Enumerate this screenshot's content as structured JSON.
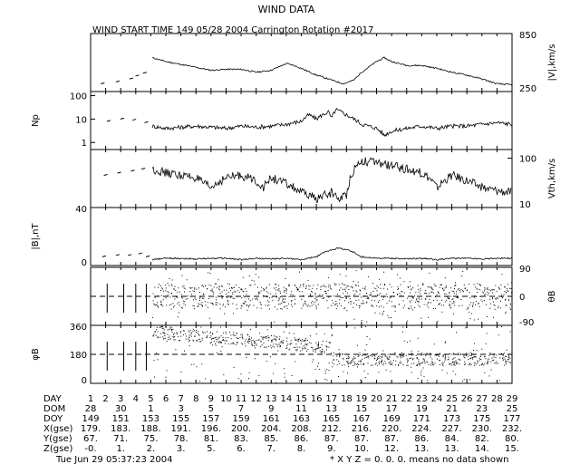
{
  "title": "WIND DATA",
  "subtitle": "WIND START TIME 149 05/28 2004 Carrington Rotation #2017",
  "footer_timestamp": "Tue Jun 29 05:37:23 2004",
  "footer_note": "* X Y Z = 0. 0. 0. means no data shown",
  "chart_data": [
    {
      "type": "line",
      "ylabel": "|V|,km/s",
      "label_side": "right",
      "yticks": [
        "850",
        "250"
      ],
      "ylim": [
        250,
        850
      ],
      "series": [
        {
          "x": [
            5.1,
            6,
            7,
            8,
            9,
            10,
            11,
            12,
            13,
            14,
            14.5,
            15,
            16,
            17,
            17.8,
            18.5,
            19,
            20,
            20.5,
            21,
            22,
            23,
            24,
            25,
            26,
            27,
            28,
            29
          ],
          "values": [
            600,
            560,
            530,
            500,
            470,
            480,
            480,
            450,
            470,
            540,
            520,
            490,
            420,
            370,
            330,
            370,
            450,
            560,
            600,
            560,
            520,
            520,
            490,
            450,
            420,
            380,
            330,
            320
          ]
        }
      ],
      "early_points": {
        "x": [
          1.8,
          2.8,
          3.7,
          4.1,
          4.6
        ],
        "values": [
          330,
          350,
          380,
          410,
          440
        ]
      }
    },
    {
      "type": "line",
      "ylabel": "Np",
      "label_side": "left",
      "yscale": "log",
      "yticks": [
        "100",
        "10",
        "1"
      ],
      "ylim": [
        0.5,
        150
      ],
      "series": [
        {
          "x": [
            5.1,
            6,
            7,
            8,
            9,
            10,
            11,
            12,
            13,
            14,
            15,
            15.5,
            16,
            16.8,
            17,
            17.3,
            18,
            18.5,
            19,
            20,
            20.5,
            21,
            22,
            23,
            24,
            25,
            26,
            27,
            28,
            29
          ],
          "values": [
            5,
            4,
            4.5,
            5,
            4.5,
            4,
            5,
            4.5,
            5,
            6,
            8,
            15,
            10,
            20,
            10,
            25,
            15,
            10,
            6,
            4,
            2,
            3,
            4,
            5,
            4,
            5,
            5,
            6,
            7,
            6
          ]
        }
      ],
      "early_points": {
        "x": [
          2.2,
          3.1,
          3.9,
          4.7
        ],
        "values": [
          8,
          10,
          9,
          7
        ]
      }
    },
    {
      "type": "line",
      "ylabel": "Vth,km/s",
      "label_side": "right",
      "yscale": "log",
      "yticks": [
        "100",
        "10"
      ],
      "ylim": [
        10,
        150
      ],
      "series": [
        {
          "x": [
            5.1,
            6,
            7,
            8,
            8.5,
            9,
            10,
            11,
            12,
            12.5,
            13,
            14,
            15,
            16,
            17,
            17.5,
            18,
            18.5,
            19,
            20,
            21,
            22,
            23,
            23.5,
            24,
            25,
            26,
            27,
            28,
            29
          ],
          "values": [
            60,
            50,
            45,
            40,
            30,
            25,
            40,
            45,
            35,
            25,
            40,
            30,
            20,
            15,
            20,
            15,
            18,
            60,
            90,
            80,
            70,
            60,
            50,
            40,
            25,
            45,
            35,
            25,
            22,
            20
          ]
        }
      ],
      "early_points": {
        "x": [
          2,
          2.9,
          3.8,
          4.5
        ],
        "values": [
          45,
          50,
          55,
          60
        ]
      }
    },
    {
      "type": "line",
      "ylabel": "|B|,nT",
      "label_side": "left",
      "yticks": [
        "40",
        "0"
      ],
      "ylim": [
        0,
        40
      ],
      "series": [
        {
          "x": [
            5.1,
            6,
            7,
            8,
            9,
            10,
            11,
            12,
            13,
            14,
            15,
            16,
            16.5,
            17,
            17.5,
            18,
            18.5,
            19,
            20,
            21,
            22,
            23,
            24,
            25,
            26,
            27,
            28,
            29
          ],
          "values": [
            4,
            5,
            5,
            4.5,
            5,
            5,
            4,
            5,
            4.5,
            5,
            4,
            6,
            9,
            11,
            12,
            11,
            9,
            6,
            5,
            5,
            4.5,
            5,
            4,
            5,
            5,
            4.5,
            5,
            5
          ]
        }
      ],
      "early_points": {
        "x": [
          1.9,
          2.8,
          3.6,
          4.3,
          4.8
        ],
        "values": [
          6,
          7,
          7,
          8,
          6
        ]
      }
    },
    {
      "type": "scatter",
      "ylabel": "θB",
      "label_side": "right",
      "yticks": [
        "90",
        "0",
        "-90"
      ],
      "ylim": [
        -90,
        90
      ],
      "reference_line": 0,
      "x_range": [
        5.1,
        29
      ],
      "spread": 40
    },
    {
      "type": "scatter",
      "ylabel": "φB",
      "label_side": "left",
      "yticks": [
        "360",
        "180",
        "0"
      ],
      "ylim": [
        0,
        360
      ],
      "reference_line": 180,
      "x_range": [
        5.1,
        29
      ]
    }
  ],
  "time_axis": {
    "labels": [
      "DAY",
      "DOM",
      "DOY",
      "X(gse)",
      "Y(gse)",
      "Z(gse)"
    ],
    "day": [
      "1",
      "2",
      "3",
      "4",
      "5",
      "6",
      "7",
      "8",
      "9",
      "10",
      "11",
      "12",
      "13",
      "14",
      "15",
      "16",
      "17",
      "18",
      "19",
      "20",
      "21",
      "22",
      "23",
      "24",
      "25",
      "26",
      "27",
      "28",
      "29"
    ],
    "dom": [
      "28",
      "30",
      "1",
      "3",
      "5",
      "7",
      "9",
      "11",
      "13",
      "15",
      "17",
      "19",
      "21",
      "23",
      "25"
    ],
    "doy": [
      "149",
      "151",
      "153",
      "155",
      "157",
      "159",
      "161",
      "163",
      "165",
      "167",
      "169",
      "171",
      "173",
      "175",
      "177"
    ],
    "xgse": [
      "179.",
      "183.",
      "188.",
      "191.",
      "196.",
      "200.",
      "204.",
      "208.",
      "212.",
      "216.",
      "220.",
      "224.",
      "227.",
      "230.",
      "232."
    ],
    "ygse": [
      "67.",
      "71.",
      "75.",
      "78.",
      "81.",
      "83.",
      "85.",
      "86.",
      "87.",
      "87.",
      "87.",
      "86.",
      "84.",
      "82.",
      "80."
    ],
    "zgse": [
      "-0.",
      "1.",
      "2.",
      "3.",
      "5.",
      "6.",
      "7.",
      "8.",
      "9.",
      "10.",
      "12.",
      "13.",
      "13.",
      "14.",
      "15."
    ]
  }
}
